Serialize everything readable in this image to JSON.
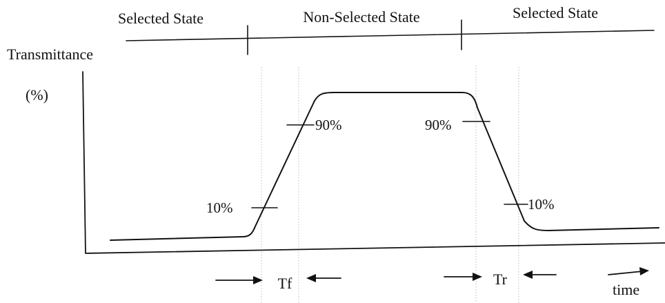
{
  "states": {
    "left": "Selected State",
    "middle": "Non-Selected State",
    "right": "Selected State"
  },
  "axes": {
    "y_label": "Transmittance",
    "y_unit": "(%)",
    "x_label": "time"
  },
  "levels": {
    "rise_low": "10%",
    "rise_high": "90%",
    "fall_high": "90%",
    "fall_low": "10%"
  },
  "intervals": {
    "rise_time": "Tf",
    "fall_time": "Tr"
  }
}
